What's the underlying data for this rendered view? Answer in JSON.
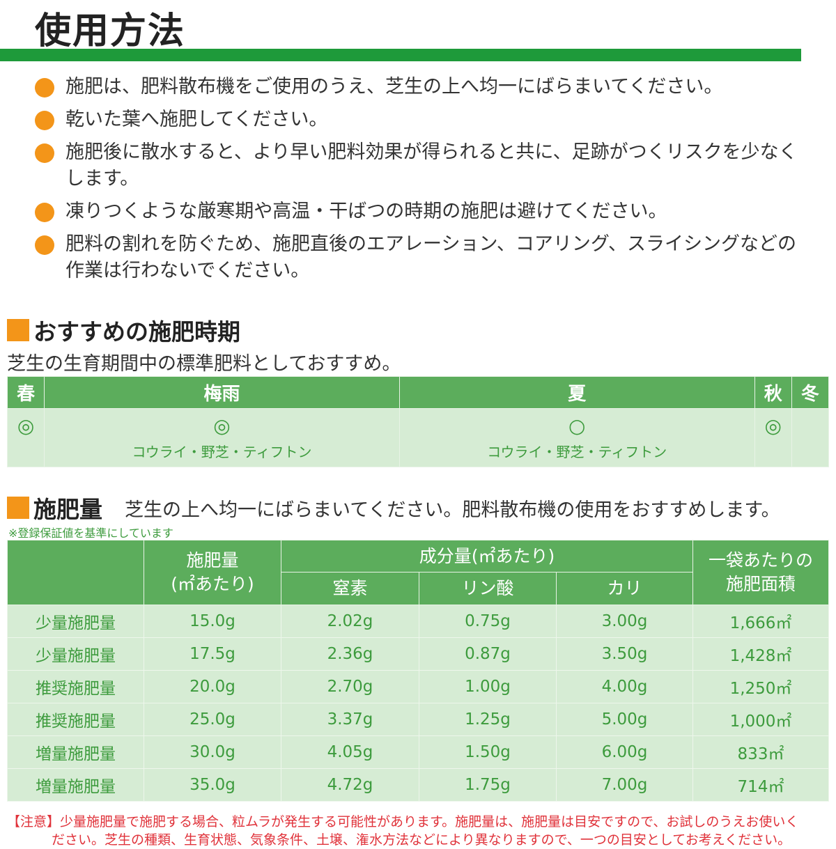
{
  "title": "使用方法",
  "bullets": [
    "施肥は、肥料散布機をご使用のうえ、芝生の上へ均一にばらまいてください。",
    "乾いた葉へ施肥してください。",
    "施肥後に散水すると、より早い肥料効果が得られると共に、足跡がつくリスクを少なくします。",
    "凍りつくような厳寒期や高温・干ばつの時期の施肥は避けてください。",
    "肥料の割れを防ぐため、施肥直後のエアレーション、コアリング、スライシングなどの作業は行わないでください。"
  ],
  "timing": {
    "heading": "おすすめの施肥時期",
    "subtitle": "芝生の生育期間中の標準肥料としておすすめ。",
    "seasons": [
      {
        "name": "春",
        "mark": "◎",
        "note": ""
      },
      {
        "name": "梅雨",
        "mark": "◎",
        "note": "コウライ・野芝・ティフトン"
      },
      {
        "name": "夏",
        "mark": "○",
        "note": "コウライ・野芝・ティフトン"
      },
      {
        "name": "秋",
        "mark": "◎",
        "note": ""
      },
      {
        "name": "冬",
        "mark": "",
        "note": ""
      }
    ]
  },
  "amount": {
    "heading": "施肥量",
    "subtitle": "芝生の上へ均一にばらまいてください。肥料散布機の使用をおすすめします。",
    "note": "※登録保証値を基準にしています",
    "headers": {
      "rate": "施肥量\n(㎡あたり)",
      "components": "成分量(㎡あたり)",
      "n": "窒素",
      "p": "リン酸",
      "k": "カリ",
      "area": "一袋あたりの\n施肥面積"
    },
    "rows": [
      [
        "少量施肥量",
        "15.0g",
        "2.02g",
        "0.75g",
        "3.00g",
        "1,666㎡"
      ],
      [
        "少量施肥量",
        "17.5g",
        "2.36g",
        "0.87g",
        "3.50g",
        "1,428㎡"
      ],
      [
        "推奨施肥量",
        "20.0g",
        "2.70g",
        "1.00g",
        "4.00g",
        "1,250㎡"
      ],
      [
        "推奨施肥量",
        "25.0g",
        "3.37g",
        "1.25g",
        "5.00g",
        "1,000㎡"
      ],
      [
        "増量施肥量",
        "30.0g",
        "4.05g",
        "1.50g",
        "6.00g",
        "833㎡"
      ],
      [
        "増量施肥量",
        "35.0g",
        "4.72g",
        "1.75g",
        "7.00g",
        "714㎡"
      ]
    ]
  },
  "warning": {
    "line1": "【注意】少量施肥量で施肥する場合、粒ムラが発生する可能性があります。施肥量は、施肥量は目安ですので、お試しのうえお使いく",
    "line2": "ださい。芝生の種類、生育状態、気象条件、土壌、潅水方法などにより異なりますので、一つの目安としてお考えください。"
  },
  "colors": {
    "green_bar": "#1e9a3a",
    "table_header": "#5cad5c",
    "table_body": "#d6ecd4",
    "bullet": "#f39519",
    "warning": "#e0323a"
  }
}
